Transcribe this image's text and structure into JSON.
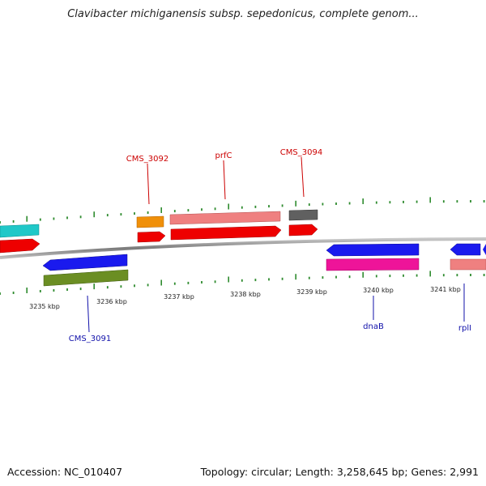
{
  "title": "Clavibacter michiganensis subsp. sepedonicus, complete genom...",
  "footer": {
    "accession": "Accession: NC_010407",
    "summary": "Topology: circular; Length: 3,258,645 bp; Genes: 2,991"
  },
  "colors": {
    "backbone": "#8a8a8a",
    "tick": "#2e8b2e",
    "top_label": "#cc0000",
    "bottom_label": "#1010aa"
  },
  "scale_labels": [
    "3235 kbp",
    "3236 kbp",
    "3237 kbp",
    "3238 kbp",
    "3239 kbp",
    "3240 kbp",
    "3241 kbp"
  ],
  "top_labels": [
    "CMS_3092",
    "prfC",
    "CMS_3094"
  ],
  "bottom_labels": [
    "CMS_3091",
    "dnaB",
    "rplI"
  ]
}
